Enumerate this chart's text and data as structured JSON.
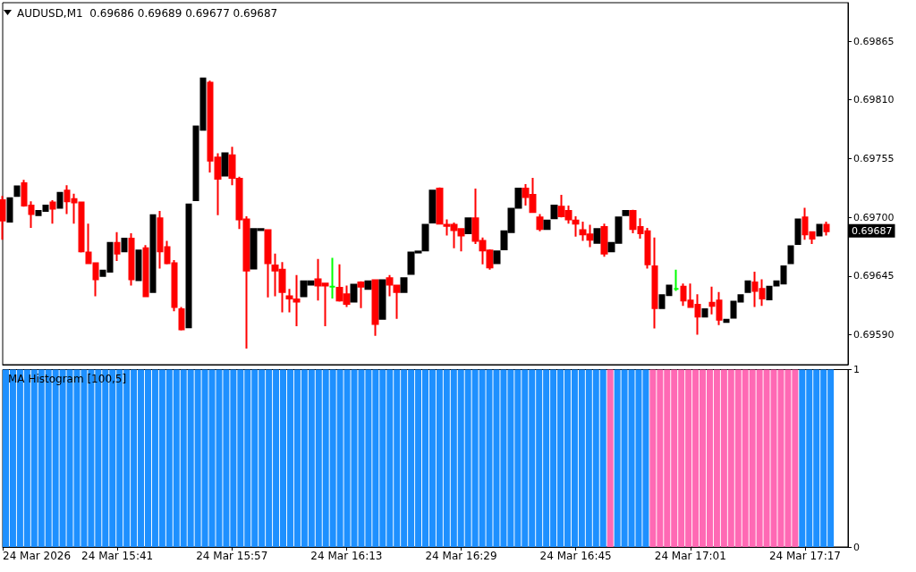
{
  "chart_data": [
    {
      "type": "candlestick",
      "title": "AUDUSD,M1  0.69686 0.69689 0.69677 0.69687",
      "tick_labels": "y",
      "x": [
        "2026-03-24T15:25",
        "2026-03-24T15:26",
        "2026-03-24T15:27",
        "2026-03-24T15:28",
        "2026-03-24T15:29",
        "2026-03-24T15:30",
        "2026-03-24T15:31",
        "2026-03-24T15:32",
        "2026-03-24T15:33",
        "2026-03-24T15:34",
        "2026-03-24T15:35",
        "2026-03-24T15:36",
        "2026-03-24T15:37",
        "2026-03-24T15:38",
        "2026-03-24T15:39",
        "2026-03-24T15:40",
        "2026-03-24T15:41",
        "2026-03-24T15:42",
        "2026-03-24T15:43",
        "2026-03-24T15:44",
        "2026-03-24T15:45",
        "2026-03-24T15:46",
        "2026-03-24T15:47",
        "2026-03-24T15:48",
        "2026-03-24T15:49",
        "2026-03-24T15:50",
        "2026-03-24T15:51",
        "2026-03-24T15:52",
        "2026-03-24T15:53",
        "2026-03-24T15:54",
        "2026-03-24T15:55",
        "2026-03-24T15:56",
        "2026-03-24T15:57",
        "2026-03-24T15:58",
        "2026-03-24T15:59",
        "2026-03-24T16:00",
        "2026-03-24T16:01",
        "2026-03-24T16:02",
        "2026-03-24T16:03",
        "2026-03-24T16:04",
        "2026-03-24T16:05",
        "2026-03-24T16:06",
        "2026-03-24T16:07",
        "2026-03-24T16:08",
        "2026-03-24T16:09",
        "2026-03-24T16:10",
        "2026-03-24T16:11",
        "2026-03-24T16:12",
        "2026-03-24T16:13",
        "2026-03-24T16:14",
        "2026-03-24T16:15",
        "2026-03-24T16:16",
        "2026-03-24T16:17",
        "2026-03-24T16:18",
        "2026-03-24T16:19",
        "2026-03-24T16:20",
        "2026-03-24T16:21",
        "2026-03-24T16:22",
        "2026-03-24T16:23",
        "2026-03-24T16:24",
        "2026-03-24T16:25",
        "2026-03-24T16:26",
        "2026-03-24T16:27",
        "2026-03-24T16:28",
        "2026-03-24T16:29",
        "2026-03-24T16:30",
        "2026-03-24T16:31",
        "2026-03-24T16:32",
        "2026-03-24T16:33",
        "2026-03-24T16:34",
        "2026-03-24T16:35",
        "2026-03-24T16:36",
        "2026-03-24T16:37",
        "2026-03-24T16:38",
        "2026-03-24T16:39",
        "2026-03-24T16:40",
        "2026-03-24T16:41",
        "2026-03-24T16:42",
        "2026-03-24T16:43",
        "2026-03-24T16:44",
        "2026-03-24T16:45",
        "2026-03-24T16:46",
        "2026-03-24T16:47",
        "2026-03-24T16:48",
        "2026-03-24T16:49",
        "2026-03-24T16:50",
        "2026-03-24T16:51",
        "2026-03-24T16:52",
        "2026-03-24T16:53",
        "2026-03-24T16:54",
        "2026-03-24T16:55",
        "2026-03-24T16:56",
        "2026-03-24T16:57",
        "2026-03-24T16:58",
        "2026-03-24T16:59",
        "2026-03-24T17:00",
        "2026-03-24T17:01",
        "2026-03-24T17:02",
        "2026-03-24T17:03",
        "2026-03-24T17:04",
        "2026-03-24T17:05",
        "2026-03-24T17:06",
        "2026-03-24T17:07",
        "2026-03-24T17:08",
        "2026-03-24T17:09",
        "2026-03-24T17:10",
        "2026-03-24T17:11",
        "2026-03-24T17:12",
        "2026-03-24T17:13",
        "2026-03-24T17:14",
        "2026-03-24T17:15",
        "2026-03-24T17:16",
        "2026-03-24T17:17",
        "2026-03-24T17:18",
        "2026-03-24T17:19",
        "2026-03-24T17:20"
      ],
      "ohlc": [
        [
          0.69716,
          0.6972,
          0.69679,
          0.69697
        ],
        [
          0.69696,
          0.69718,
          0.69696,
          0.69718
        ],
        [
          0.6972,
          0.69729,
          0.6972,
          0.69729
        ],
        [
          0.69732,
          0.69735,
          0.6971,
          0.69711
        ],
        [
          0.69711,
          0.69715,
          0.6969,
          0.69703
        ],
        [
          0.69702,
          0.69706,
          0.69702,
          0.69706
        ],
        [
          0.69706,
          0.69711,
          0.69706,
          0.69711
        ],
        [
          0.69714,
          0.69716,
          0.69694,
          0.69708
        ],
        [
          0.69709,
          0.69723,
          0.69709,
          0.69723
        ],
        [
          0.69725,
          0.6973,
          0.69703,
          0.69715
        ],
        [
          0.69717,
          0.69722,
          0.69694,
          0.69714
        ],
        [
          0.69714,
          0.69714,
          0.69667,
          0.69668
        ],
        [
          0.69667,
          0.69694,
          0.69657,
          0.69657
        ],
        [
          0.69657,
          0.69657,
          0.69626,
          0.69642
        ],
        [
          0.69645,
          0.6965,
          0.69645,
          0.6965
        ],
        [
          0.69649,
          0.69676,
          0.69649,
          0.69676
        ],
        [
          0.69676,
          0.69686,
          0.69659,
          0.69666
        ],
        [
          0.69668,
          0.6968,
          0.69668,
          0.6968
        ],
        [
          0.6968,
          0.69685,
          0.69636,
          0.69642
        ],
        [
          0.69641,
          0.69669,
          0.69641,
          0.69669
        ],
        [
          0.69671,
          0.69674,
          0.69626,
          0.69626
        ],
        [
          0.6963,
          0.69702,
          0.6963,
          0.69702
        ],
        [
          0.69699,
          0.69706,
          0.69652,
          0.69668
        ],
        [
          0.69672,
          0.69678,
          0.69656,
          0.69657
        ],
        [
          0.69657,
          0.6966,
          0.69612,
          0.69616
        ],
        [
          0.69614,
          0.69616,
          0.69594,
          0.69595
        ],
        [
          0.69597,
          0.69712,
          0.69597,
          0.69712
        ],
        [
          0.69716,
          0.69785,
          0.69716,
          0.69785
        ],
        [
          0.69782,
          0.6983,
          0.69782,
          0.6983
        ],
        [
          0.69826,
          0.69828,
          0.69742,
          0.69753
        ],
        [
          0.69756,
          0.6976,
          0.69702,
          0.69736
        ],
        [
          0.69739,
          0.6976,
          0.69739,
          0.6976
        ],
        [
          0.69758,
          0.69766,
          0.6973,
          0.69737
        ],
        [
          0.69736,
          0.69738,
          0.69689,
          0.69698
        ],
        [
          0.69698,
          0.69701,
          0.69577,
          0.6965
        ],
        [
          0.69652,
          0.69689,
          0.69652,
          0.69689
        ],
        [
          0.69688,
          0.69689,
          0.69688,
          0.69689
        ],
        [
          0.69688,
          0.69688,
          0.69625,
          0.69657
        ],
        [
          0.69655,
          0.69666,
          0.69626,
          0.6965
        ],
        [
          0.69651,
          0.69658,
          0.69611,
          0.6963
        ],
        [
          0.69626,
          0.69633,
          0.69611,
          0.69624
        ],
        [
          0.69623,
          0.69646,
          0.69598,
          0.69621
        ],
        [
          0.69626,
          0.6964,
          0.69626,
          0.6964
        ],
        [
          0.69637,
          0.6964,
          0.69637,
          0.6964
        ],
        [
          0.69642,
          0.69661,
          0.69622,
          0.69636
        ],
        [
          0.69638,
          0.69638,
          0.69598,
          0.69636
        ],
        [
          0.69635,
          0.69662,
          0.69624,
          0.69635
        ],
        [
          0.69634,
          0.69656,
          0.69621,
          0.69622
        ],
        [
          0.69628,
          0.69636,
          0.69616,
          0.69619
        ],
        [
          0.69621,
          0.69637,
          0.69621,
          0.69637
        ],
        [
          0.69639,
          0.6964,
          0.69615,
          0.69635
        ],
        [
          0.69633,
          0.6964,
          0.69633,
          0.6964
        ],
        [
          0.69641,
          0.69642,
          0.69589,
          0.696
        ],
        [
          0.69605,
          0.69641,
          0.69605,
          0.69641
        ],
        [
          0.69643,
          0.69646,
          0.69626,
          0.69637
        ],
        [
          0.69636,
          0.69636,
          0.69605,
          0.6963
        ],
        [
          0.6963,
          0.69643,
          0.6963,
          0.69643
        ],
        [
          0.69647,
          0.69667,
          0.69647,
          0.69667
        ],
        [
          0.69667,
          0.69668,
          0.69667,
          0.69668
        ],
        [
          0.69669,
          0.69693,
          0.69669,
          0.69693
        ],
        [
          0.69695,
          0.69725,
          0.69695,
          0.69725
        ],
        [
          0.69727,
          0.69728,
          0.69694,
          0.69694
        ],
        [
          0.69693,
          0.69698,
          0.69683,
          0.69692
        ],
        [
          0.69693,
          0.69695,
          0.69671,
          0.69688
        ],
        [
          0.69689,
          0.69689,
          0.69668,
          0.69683
        ],
        [
          0.69685,
          0.69699,
          0.69685,
          0.69699
        ],
        [
          0.69699,
          0.69727,
          0.69675,
          0.69678
        ],
        [
          0.69678,
          0.69681,
          0.69656,
          0.69669
        ],
        [
          0.69669,
          0.6967,
          0.69651,
          0.69653
        ],
        [
          0.69657,
          0.69668,
          0.69657,
          0.69668
        ],
        [
          0.6967,
          0.69687,
          0.6967,
          0.69687
        ],
        [
          0.69686,
          0.69708,
          0.69686,
          0.69708
        ],
        [
          0.69709,
          0.69727,
          0.69709,
          0.69727
        ],
        [
          0.69727,
          0.69731,
          0.69711,
          0.69719
        ],
        [
          0.69721,
          0.69737,
          0.69705,
          0.69705
        ],
        [
          0.697,
          0.69703,
          0.69687,
          0.69689
        ],
        [
          0.69689,
          0.69697,
          0.69689,
          0.69697
        ],
        [
          0.69699,
          0.69711,
          0.69699,
          0.69711
        ],
        [
          0.6971,
          0.69721,
          0.697,
          0.69701
        ],
        [
          0.69706,
          0.69711,
          0.69694,
          0.69698
        ],
        [
          0.69697,
          0.69701,
          0.69682,
          0.69694
        ],
        [
          0.69688,
          0.69696,
          0.69678,
          0.69684
        ],
        [
          0.69684,
          0.69693,
          0.69672,
          0.69679
        ],
        [
          0.69676,
          0.69689,
          0.69676,
          0.69689
        ],
        [
          0.69691,
          0.69694,
          0.69663,
          0.69666
        ],
        [
          0.69668,
          0.69676,
          0.69668,
          0.69676
        ],
        [
          0.69676,
          0.697,
          0.69676,
          0.697
        ],
        [
          0.69702,
          0.69706,
          0.69702,
          0.69706
        ],
        [
          0.69706,
          0.69707,
          0.69685,
          0.69689
        ],
        [
          0.69691,
          0.69699,
          0.6968,
          0.69685
        ],
        [
          0.69687,
          0.6969,
          0.69652,
          0.69656
        ],
        [
          0.69654,
          0.69681,
          0.69596,
          0.69615
        ],
        [
          0.69615,
          0.69627,
          0.69615,
          0.69627
        ],
        [
          0.69627,
          0.69636,
          0.69627,
          0.69636
        ],
        [
          0.69633,
          0.69651,
          0.69631,
          0.69633
        ],
        [
          0.69635,
          0.69638,
          0.69617,
          0.69622
        ],
        [
          0.69622,
          0.69638,
          0.69616,
          0.69616
        ],
        [
          0.69618,
          0.69628,
          0.6959,
          0.69607
        ],
        [
          0.69607,
          0.69614,
          0.69607,
          0.69614
        ],
        [
          0.6962,
          0.69635,
          0.69609,
          0.69617
        ],
        [
          0.69622,
          0.6963,
          0.69599,
          0.69604
        ],
        [
          0.69602,
          0.69604,
          0.69602,
          0.69604
        ],
        [
          0.69606,
          0.69621,
          0.69606,
          0.69621
        ],
        [
          0.69621,
          0.69627,
          0.69621,
          0.69627
        ],
        [
          0.6963,
          0.6964,
          0.6963,
          0.6964
        ],
        [
          0.69639,
          0.69649,
          0.69616,
          0.69631
        ],
        [
          0.69633,
          0.69642,
          0.69617,
          0.69624
        ],
        [
          0.69623,
          0.69635,
          0.69623,
          0.69635
        ],
        [
          0.69636,
          0.6964,
          0.69636,
          0.6964
        ],
        [
          0.69638,
          0.69654,
          0.69638,
          0.69654
        ],
        [
          0.69657,
          0.69673,
          0.69657,
          0.69673
        ],
        [
          0.69675,
          0.69698,
          0.69675,
          0.69698
        ],
        [
          0.697,
          0.69709,
          0.69679,
          0.69684
        ],
        [
          0.69686,
          0.69687,
          0.69675,
          0.6968
        ],
        [
          0.69683,
          0.69693,
          0.69683,
          0.69693
        ],
        [
          0.69693,
          0.69696,
          0.69683,
          0.69687
        ]
      ],
      "colors": [
        "#ff0000",
        "#000000",
        "#000000",
        "#ff0000",
        "#ff0000",
        "#000000",
        "#000000",
        "#ff0000",
        "#000000",
        "#ff0000",
        "#ff0000",
        "#ff0000",
        "#ff0000",
        "#ff0000",
        "#000000",
        "#000000",
        "#ff0000",
        "#000000",
        "#ff0000",
        "#000000",
        "#ff0000",
        "#000000",
        "#ff0000",
        "#ff0000",
        "#ff0000",
        "#ff0000",
        "#000000",
        "#000000",
        "#000000",
        "#ff0000",
        "#ff0000",
        "#000000",
        "#ff0000",
        "#ff0000",
        "#ff0000",
        "#000000",
        "#000000",
        "#ff0000",
        "#ff0000",
        "#ff0000",
        "#ff0000",
        "#ff0000",
        "#000000",
        "#000000",
        "#ff0000",
        "#ff0000",
        "#00ff00",
        "#ff0000",
        "#ff0000",
        "#000000",
        "#ff0000",
        "#000000",
        "#ff0000",
        "#000000",
        "#ff0000",
        "#ff0000",
        "#000000",
        "#000000",
        "#000000",
        "#000000",
        "#000000",
        "#ff0000",
        "#ff0000",
        "#ff0000",
        "#ff0000",
        "#000000",
        "#ff0000",
        "#ff0000",
        "#ff0000",
        "#000000",
        "#000000",
        "#000000",
        "#000000",
        "#ff0000",
        "#ff0000",
        "#ff0000",
        "#000000",
        "#000000",
        "#ff0000",
        "#ff0000",
        "#ff0000",
        "#ff0000",
        "#ff0000",
        "#000000",
        "#ff0000",
        "#000000",
        "#000000",
        "#000000",
        "#ff0000",
        "#ff0000",
        "#ff0000",
        "#ff0000",
        "#000000",
        "#000000",
        "#00ff00",
        "#ff0000",
        "#ff0000",
        "#ff0000",
        "#000000",
        "#ff0000",
        "#ff0000",
        "#000000",
        "#000000",
        "#000000",
        "#000000",
        "#ff0000",
        "#ff0000",
        "#000000",
        "#000000",
        "#000000",
        "#000000",
        "#000000",
        "#ff0000",
        "#ff0000",
        "#000000",
        "#ff0000"
      ],
      "xlim": [
        "2026-03-24T15:25",
        "2026-03-24T17:23"
      ],
      "ylim": [
        0.69562,
        0.69901
      ],
      "yticks": [
        {
          "value": 0.6959,
          "label": "0.69590"
        },
        {
          "value": 0.69645,
          "label": "0.69645"
        },
        {
          "value": 0.697,
          "label": "0.69700"
        },
        {
          "value": 0.69755,
          "label": "0.69755"
        },
        {
          "value": 0.6981,
          "label": "0.69810"
        },
        {
          "value": 0.69865,
          "label": "0.69865"
        }
      ],
      "annotations": [
        "0.69687"
      ]
    },
    {
      "type": "bar",
      "title": "MA Histogram [100,5]",
      "x": [
        "2026-03-24T15:25",
        "2026-03-24T15:26",
        "2026-03-24T15:27",
        "2026-03-24T15:28",
        "2026-03-24T15:29",
        "2026-03-24T15:30",
        "2026-03-24T15:31",
        "2026-03-24T15:32",
        "2026-03-24T15:33",
        "2026-03-24T15:34",
        "2026-03-24T15:35",
        "2026-03-24T15:36",
        "2026-03-24T15:37",
        "2026-03-24T15:38",
        "2026-03-24T15:39",
        "2026-03-24T15:40",
        "2026-03-24T15:41",
        "2026-03-24T15:42",
        "2026-03-24T15:43",
        "2026-03-24T15:44",
        "2026-03-24T15:45",
        "2026-03-24T15:46",
        "2026-03-24T15:47",
        "2026-03-24T15:48",
        "2026-03-24T15:49",
        "2026-03-24T15:50",
        "2026-03-24T15:51",
        "2026-03-24T15:52",
        "2026-03-24T15:53",
        "2026-03-24T15:54",
        "2026-03-24T15:55",
        "2026-03-24T15:56",
        "2026-03-24T15:57",
        "2026-03-24T15:58",
        "2026-03-24T15:59",
        "2026-03-24T16:00",
        "2026-03-24T16:01",
        "2026-03-24T16:02",
        "2026-03-24T16:03",
        "2026-03-24T16:04",
        "2026-03-24T16:05",
        "2026-03-24T16:06",
        "2026-03-24T16:07",
        "2026-03-24T16:08",
        "2026-03-24T16:09",
        "2026-03-24T16:10",
        "2026-03-24T16:11",
        "2026-03-24T16:12",
        "2026-03-24T16:13",
        "2026-03-24T16:14",
        "2026-03-24T16:15",
        "2026-03-24T16:16",
        "2026-03-24T16:17",
        "2026-03-24T16:18",
        "2026-03-24T16:19",
        "2026-03-24T16:20",
        "2026-03-24T16:21",
        "2026-03-24T16:22",
        "2026-03-24T16:23",
        "2026-03-24T16:24",
        "2026-03-24T16:25",
        "2026-03-24T16:26",
        "2026-03-24T16:27",
        "2026-03-24T16:28",
        "2026-03-24T16:29",
        "2026-03-24T16:30",
        "2026-03-24T16:31",
        "2026-03-24T16:32",
        "2026-03-24T16:33",
        "2026-03-24T16:34",
        "2026-03-24T16:35",
        "2026-03-24T16:36",
        "2026-03-24T16:37",
        "2026-03-24T16:38",
        "2026-03-24T16:39",
        "2026-03-24T16:40",
        "2026-03-24T16:41",
        "2026-03-24T16:42",
        "2026-03-24T16:43",
        "2026-03-24T16:44",
        "2026-03-24T16:45",
        "2026-03-24T16:46",
        "2026-03-24T16:47",
        "2026-03-24T16:48",
        "2026-03-24T16:49",
        "2026-03-24T16:50",
        "2026-03-24T16:51",
        "2026-03-24T16:52",
        "2026-03-24T16:53",
        "2026-03-24T16:54",
        "2026-03-24T16:55",
        "2026-03-24T16:56",
        "2026-03-24T16:57",
        "2026-03-24T16:58",
        "2026-03-24T16:59",
        "2026-03-24T17:00",
        "2026-03-24T17:01",
        "2026-03-24T17:02",
        "2026-03-24T17:03",
        "2026-03-24T17:04",
        "2026-03-24T17:05",
        "2026-03-24T17:06",
        "2026-03-24T17:07",
        "2026-03-24T17:08",
        "2026-03-24T17:09",
        "2026-03-24T17:10",
        "2026-03-24T17:11",
        "2026-03-24T17:12",
        "2026-03-24T17:13",
        "2026-03-24T17:14",
        "2026-03-24T17:15",
        "2026-03-24T17:16",
        "2026-03-24T17:17",
        "2026-03-24T17:18",
        "2026-03-24T17:19",
        "2026-03-24T17:20",
        "2026-03-24T17:21"
      ],
      "values": [
        1,
        1,
        1,
        1,
        1,
        1,
        1,
        1,
        1,
        1,
        1,
        1,
        1,
        1,
        1,
        1,
        1,
        1,
        1,
        1,
        1,
        1,
        1,
        1,
        1,
        1,
        1,
        1,
        1,
        1,
        1,
        1,
        1,
        1,
        1,
        1,
        1,
        1,
        1,
        1,
        1,
        1,
        1,
        1,
        1,
        1,
        1,
        1,
        1,
        1,
        1,
        1,
        1,
        1,
        1,
        1,
        1,
        1,
        1,
        1,
        1,
        1,
        1,
        1,
        1,
        1,
        1,
        1,
        1,
        1,
        1,
        1,
        1,
        1,
        1,
        1,
        1,
        1,
        1,
        1,
        1,
        1,
        1,
        1,
        1,
        1,
        1,
        1,
        1,
        1,
        1,
        1,
        1,
        1,
        1,
        1,
        1,
        1,
        1,
        1,
        1,
        1,
        1,
        1,
        1,
        1,
        1,
        1,
        1,
        1,
        1,
        1,
        1,
        1,
        1,
        1,
        1
      ],
      "colors": [
        "#1e90ff",
        "#1e90ff",
        "#1e90ff",
        "#1e90ff",
        "#1e90ff",
        "#1e90ff",
        "#1e90ff",
        "#1e90ff",
        "#1e90ff",
        "#1e90ff",
        "#1e90ff",
        "#1e90ff",
        "#1e90ff",
        "#1e90ff",
        "#1e90ff",
        "#1e90ff",
        "#1e90ff",
        "#1e90ff",
        "#1e90ff",
        "#1e90ff",
        "#1e90ff",
        "#1e90ff",
        "#1e90ff",
        "#1e90ff",
        "#1e90ff",
        "#1e90ff",
        "#1e90ff",
        "#1e90ff",
        "#1e90ff",
        "#1e90ff",
        "#1e90ff",
        "#1e90ff",
        "#1e90ff",
        "#1e90ff",
        "#1e90ff",
        "#1e90ff",
        "#1e90ff",
        "#1e90ff",
        "#1e90ff",
        "#1e90ff",
        "#1e90ff",
        "#1e90ff",
        "#1e90ff",
        "#1e90ff",
        "#1e90ff",
        "#1e90ff",
        "#1e90ff",
        "#1e90ff",
        "#1e90ff",
        "#1e90ff",
        "#1e90ff",
        "#1e90ff",
        "#1e90ff",
        "#1e90ff",
        "#1e90ff",
        "#1e90ff",
        "#1e90ff",
        "#1e90ff",
        "#1e90ff",
        "#1e90ff",
        "#1e90ff",
        "#1e90ff",
        "#1e90ff",
        "#1e90ff",
        "#1e90ff",
        "#1e90ff",
        "#1e90ff",
        "#1e90ff",
        "#1e90ff",
        "#1e90ff",
        "#1e90ff",
        "#1e90ff",
        "#1e90ff",
        "#1e90ff",
        "#1e90ff",
        "#1e90ff",
        "#1e90ff",
        "#1e90ff",
        "#1e90ff",
        "#1e90ff",
        "#1e90ff",
        "#1e90ff",
        "#1e90ff",
        "#1e90ff",
        "#1e90ff",
        "#ff69b4",
        "#1e90ff",
        "#1e90ff",
        "#1e90ff",
        "#1e90ff",
        "#1e90ff",
        "#ff69b4",
        "#ff69b4",
        "#ff69b4",
        "#ff69b4",
        "#ff69b4",
        "#ff69b4",
        "#ff69b4",
        "#ff69b4",
        "#ff69b4",
        "#ff69b4",
        "#ff69b4",
        "#ff69b4",
        "#ff69b4",
        "#ff69b4",
        "#ff69b4",
        "#ff69b4",
        "#ff69b4",
        "#ff69b4",
        "#ff69b4",
        "#ff69b4",
        "#ff69b4",
        "#1e90ff",
        "#1e90ff",
        "#1e90ff",
        "#1e90ff",
        "#1e90ff"
      ],
      "xlim": [
        "2026-03-24T15:25",
        "2026-03-24T17:23"
      ],
      "xticks": [
        {
          "value": "2026-03-24T15:25",
          "label": "24 Mar 2026"
        },
        {
          "value": "2026-03-24T15:41",
          "label": "24 Mar 15:41"
        },
        {
          "value": "2026-03-24T15:57",
          "label": "24 Mar 15:57"
        },
        {
          "value": "2026-03-24T16:13",
          "label": "24 Mar 16:13"
        },
        {
          "value": "2026-03-24T16:29",
          "label": "24 Mar 16:29"
        },
        {
          "value": "2026-03-24T16:45",
          "label": "24 Mar 16:45"
        },
        {
          "value": "2026-03-24T17:01",
          "label": "24 Mar 17:01"
        },
        {
          "value": "2026-03-24T17:17",
          "label": "24 Mar 17:17"
        }
      ],
      "ylim": [
        0,
        1
      ],
      "yticks": [
        0,
        1
      ]
    }
  ]
}
